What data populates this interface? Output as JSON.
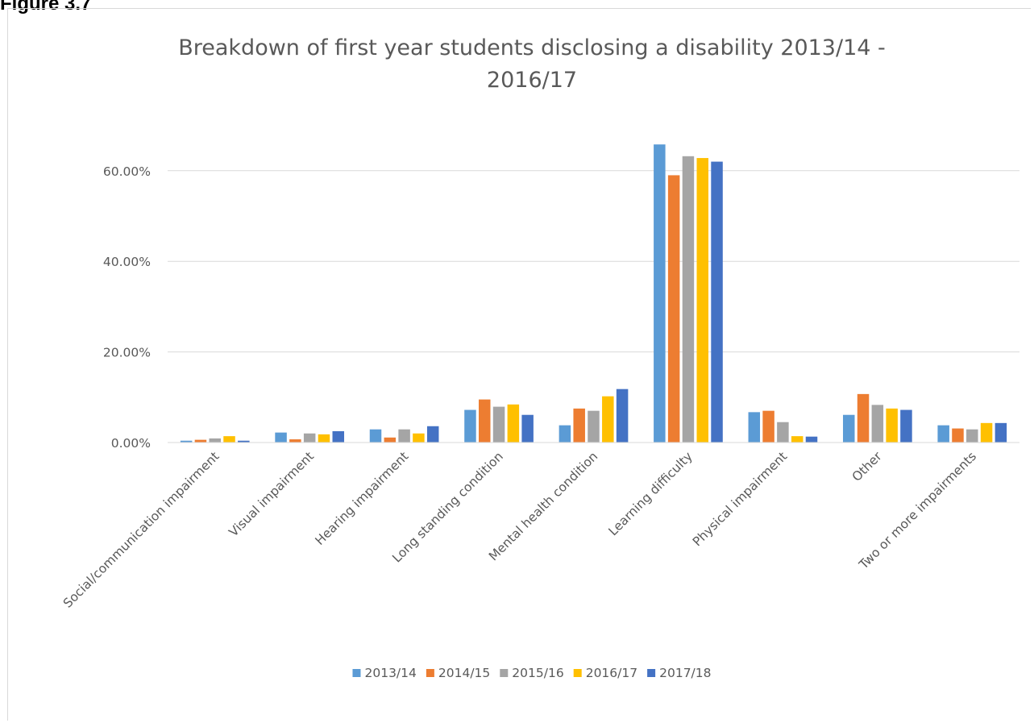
{
  "figure_label": "Figure 3.7",
  "chart_data": {
    "type": "bar",
    "title": "Breakdown of first year students disclosing a disability 2013/14 - 2016/17",
    "title_lines": [
      "Breakdown of first year students disclosing a disability 2013/14 -",
      "2016/17"
    ],
    "xlabel": "",
    "ylabel": "",
    "ylim": [
      0,
      0.7
    ],
    "yticks": [
      0,
      0.2,
      0.4,
      0.6
    ],
    "ytick_labels": [
      "0.00%",
      "20.00%",
      "40.00%",
      "60.00%"
    ],
    "grid": true,
    "legend_position": "bottom",
    "categories": [
      "Social/communication impairment",
      "Visual impairment",
      "Hearing impairment",
      "Long standing condition",
      "Mental health condition",
      "Learning difficulty",
      "Physical impairment",
      "Other",
      "Two or more impairments"
    ],
    "series": [
      {
        "name": "2013/14",
        "color": "#5b9bd5",
        "values": [
          0.004,
          0.022,
          0.029,
          0.072,
          0.038,
          0.658,
          0.067,
          0.061,
          0.038
        ]
      },
      {
        "name": "2014/15",
        "color": "#ed7d31",
        "values": [
          0.006,
          0.007,
          0.011,
          0.095,
          0.075,
          0.59,
          0.07,
          0.107,
          0.031
        ]
      },
      {
        "name": "2015/16",
        "color": "#a5a5a5",
        "values": [
          0.009,
          0.02,
          0.029,
          0.079,
          0.07,
          0.632,
          0.045,
          0.083,
          0.029
        ]
      },
      {
        "name": "2016/17",
        "color": "#ffc000",
        "values": [
          0.014,
          0.018,
          0.02,
          0.084,
          0.102,
          0.628,
          0.014,
          0.075,
          0.043
        ]
      },
      {
        "name": "2017/18",
        "color": "#4472c4",
        "values": [
          0.004,
          0.025,
          0.036,
          0.061,
          0.118,
          0.62,
          0.013,
          0.072,
          0.043
        ]
      }
    ]
  }
}
